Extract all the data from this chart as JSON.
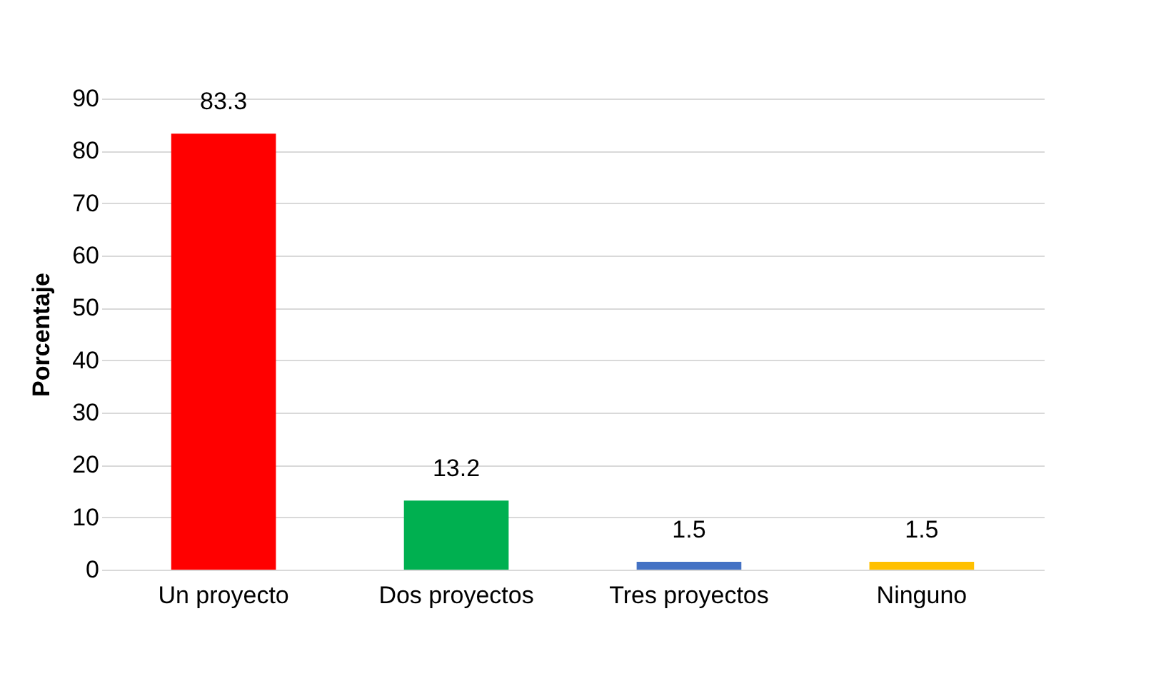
{
  "chart_data": {
    "type": "bar",
    "ylabel": "Porcentaje",
    "categories": [
      "Un proyecto",
      "Dos proyectos",
      "Tres proyectos",
      "Ninguno"
    ],
    "values": [
      83.3,
      13.2,
      1.5,
      1.5
    ],
    "colors": [
      "#ff0000",
      "#00b050",
      "#4472c4",
      "#ffc000"
    ],
    "ylim": [
      0,
      90
    ],
    "yticks": [
      0,
      10,
      20,
      30,
      40,
      50,
      60,
      70,
      80,
      90
    ],
    "grid": "y",
    "data_labels": true,
    "legend": false
  }
}
